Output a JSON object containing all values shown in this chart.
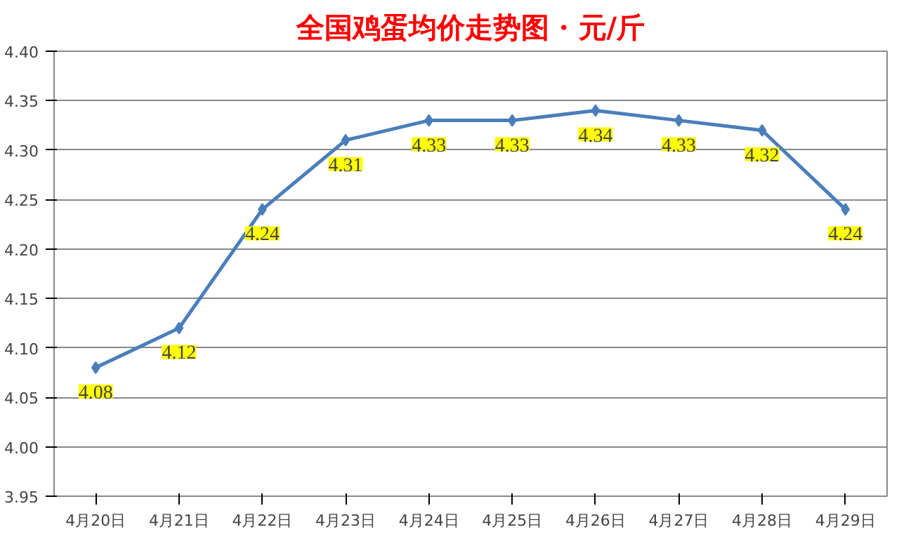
{
  "chart_data": {
    "type": "line",
    "title": "全国鸡蛋均价走势图 · 元/斤",
    "categories": [
      "4月20日",
      "4月21日",
      "4月22日",
      "4月23日",
      "4月24日",
      "4月25日",
      "4月26日",
      "4月27日",
      "4月28日",
      "4月29日"
    ],
    "series": [
      {
        "color": "#4a7ebb",
        "values": [
          4.08,
          4.12,
          4.24,
          4.31,
          4.33,
          4.33,
          4.34,
          4.33,
          4.32,
          4.24
        ]
      }
    ],
    "ylim": [
      3.95,
      4.4
    ],
    "yticks": [
      {
        "value": 3.95,
        "label": "3.95"
      },
      {
        "value": 4.0,
        "label": "4.00"
      },
      {
        "value": 4.05,
        "label": "4.05"
      },
      {
        "value": 4.1,
        "label": "4.10"
      },
      {
        "value": 4.15,
        "label": "4.15"
      },
      {
        "value": 4.2,
        "label": "4.20"
      },
      {
        "value": 4.25,
        "label": "4.25"
      },
      {
        "value": 4.3,
        "label": "4.30"
      },
      {
        "value": 4.35,
        "label": "4.35"
      },
      {
        "value": 4.4,
        "label": "4.40"
      }
    ],
    "grid": "y",
    "marker": "diamond",
    "line_style": "solid",
    "data_labels": true
  }
}
